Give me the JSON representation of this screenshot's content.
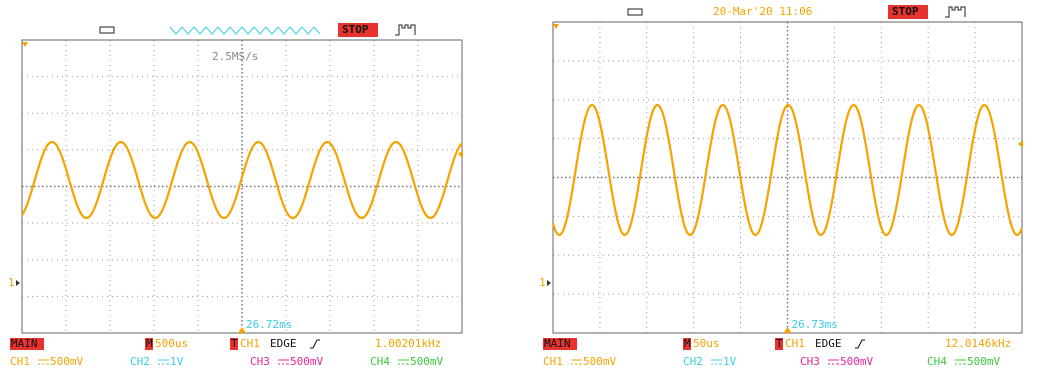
{
  "panels": [
    {
      "sample_rate": "2.5MS/s",
      "status": "STOP",
      "timebase_mode": "MAIN",
      "timebase_label": "M",
      "timebase": "500us",
      "trigger_label": "T",
      "trigger_source": "CH1",
      "trigger_type": "EDGE",
      "frequency": "1.00201kHz",
      "trigger_position": "26.72ms",
      "channel_marker": "1",
      "channels": [
        {
          "name": "CH1",
          "scale": "500mV"
        },
        {
          "name": "CH2",
          "scale": "1V"
        },
        {
          "name": "CH3",
          "scale": "500mV"
        },
        {
          "name": "CH4",
          "scale": "500mV"
        }
      ]
    },
    {
      "datetime": "20-Mar'20 11:06",
      "status": "STOP",
      "timebase_mode": "MAIN",
      "timebase_label": "M",
      "timebase": "50us",
      "trigger_label": "T",
      "trigger_source": "CH1",
      "trigger_type": "EDGE",
      "frequency": "12.0146kHz",
      "trigger_position": "26.73ms",
      "channel_marker": "1",
      "channels": [
        {
          "name": "CH1",
          "scale": "500mV"
        },
        {
          "name": "CH2",
          "scale": "1V"
        },
        {
          "name": "CH3",
          "scale": "500mV"
        },
        {
          "name": "CH4",
          "scale": "500mV"
        }
      ]
    }
  ]
}
